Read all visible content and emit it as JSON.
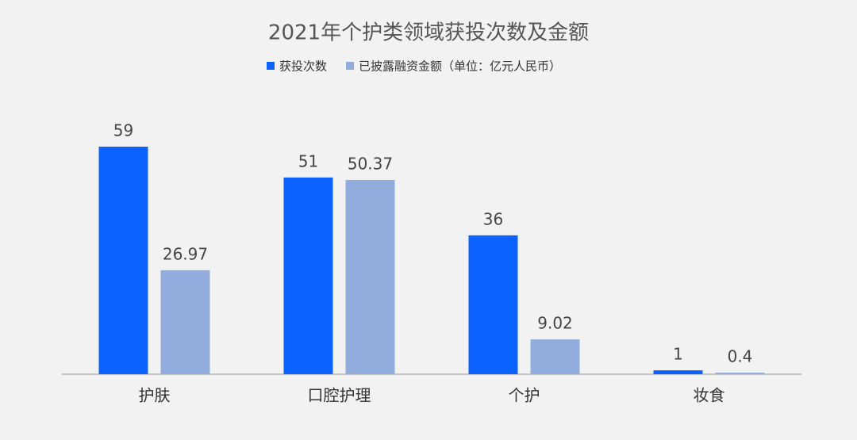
{
  "chart_data": {
    "type": "bar",
    "title": "2021年个护类领域获投次数及金额",
    "categories": [
      "护肤",
      "口腔护理",
      "个护",
      "妆食"
    ],
    "series": [
      {
        "name": "获投次数",
        "color": "#0b62fe",
        "values": [
          59,
          51,
          36,
          1
        ]
      },
      {
        "name": "已披露融资金额（单位：亿元人民币）",
        "color": "#91acdd",
        "values": [
          26.97,
          50.37,
          9.02,
          0.4
        ]
      }
    ],
    "legend": "top"
  }
}
